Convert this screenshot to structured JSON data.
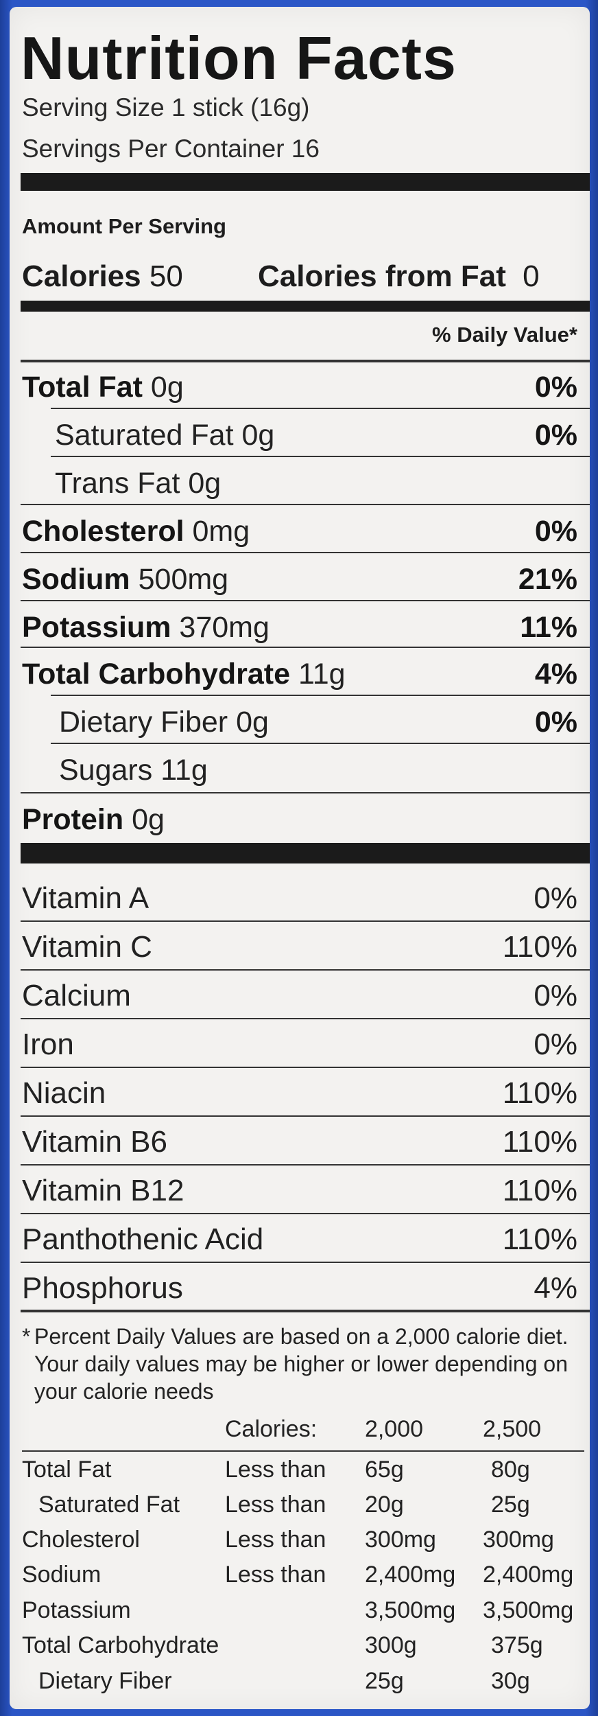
{
  "title": "Nutrition Facts",
  "serving_size": "Serving Size 1 stick (16g)",
  "servings_per_container": "Servings Per Container 16",
  "amount_per_serving": "Amount Per Serving",
  "calories": {
    "label": "Calories",
    "value": "50"
  },
  "calories_from_fat": {
    "label": "Calories from Fat",
    "value": "0"
  },
  "daily_value_header": "% Daily Value*",
  "nutrients": [
    {
      "name": "Total Fat",
      "amount": "0g",
      "dv": "0%"
    },
    {
      "name": "Saturated Fat",
      "amount": "0g",
      "dv": "0%"
    },
    {
      "name": "Trans Fat",
      "amount": "0g",
      "dv": ""
    },
    {
      "name": "Cholesterol",
      "amount": "0mg",
      "dv": "0%"
    },
    {
      "name": "Sodium",
      "amount": "500mg",
      "dv": "21%"
    },
    {
      "name": "Potassium",
      "amount": "370mg",
      "dv": "11%"
    },
    {
      "name": "Total Carbohydrate",
      "amount": "11g",
      "dv": "4%"
    },
    {
      "name": "Dietary Fiber",
      "amount": "0g",
      "dv": "0%"
    },
    {
      "name": "Sugars",
      "amount": "11g",
      "dv": ""
    },
    {
      "name": "Protein",
      "amount": "0g",
      "dv": ""
    }
  ],
  "vitamins": [
    {
      "name": "Vitamin A",
      "dv": "0%"
    },
    {
      "name": "Vitamin C",
      "dv": "110%"
    },
    {
      "name": "Calcium",
      "dv": "0%"
    },
    {
      "name": "Iron",
      "dv": "0%"
    },
    {
      "name": "Niacin",
      "dv": "110%"
    },
    {
      "name": "Vitamin B6",
      "dv": "110%"
    },
    {
      "name": "Vitamin B12",
      "dv": "110%"
    },
    {
      "name": "Panthothenic Acid",
      "dv": "110%"
    },
    {
      "name": "Phosphorus",
      "dv": "4%"
    }
  ],
  "footnote_star": "*",
  "footnote": "Percent Daily Values are based on a 2,000 calorie diet. Your daily values may be higher or lower depending on your calorie needs",
  "reference_table": {
    "header": {
      "label": "Calories:",
      "col1": "2,000",
      "col2": "2,500"
    },
    "rows": [
      {
        "nutrient": "Total Fat",
        "qualifier": "Less than",
        "v2000": "65g",
        "v2500": "80g"
      },
      {
        "nutrient": "Saturated Fat",
        "qualifier": "Less than",
        "v2000": "20g",
        "v2500": "25g"
      },
      {
        "nutrient": "Cholesterol",
        "qualifier": "Less than",
        "v2000": "300mg",
        "v2500": "300mg"
      },
      {
        "nutrient": "Sodium",
        "qualifier": "Less than",
        "v2000": "2,400mg",
        "v2500": "2,400mg"
      },
      {
        "nutrient": "Potassium",
        "qualifier": "",
        "v2000": "3,500mg",
        "v2500": "3,500mg"
      },
      {
        "nutrient": "Total Carbohydrate",
        "qualifier": "",
        "v2000": "300g",
        "v2500": "375g"
      },
      {
        "nutrient": "Dietary Fiber",
        "qualifier": "",
        "v2000": "25g",
        "v2500": "30g"
      }
    ]
  }
}
